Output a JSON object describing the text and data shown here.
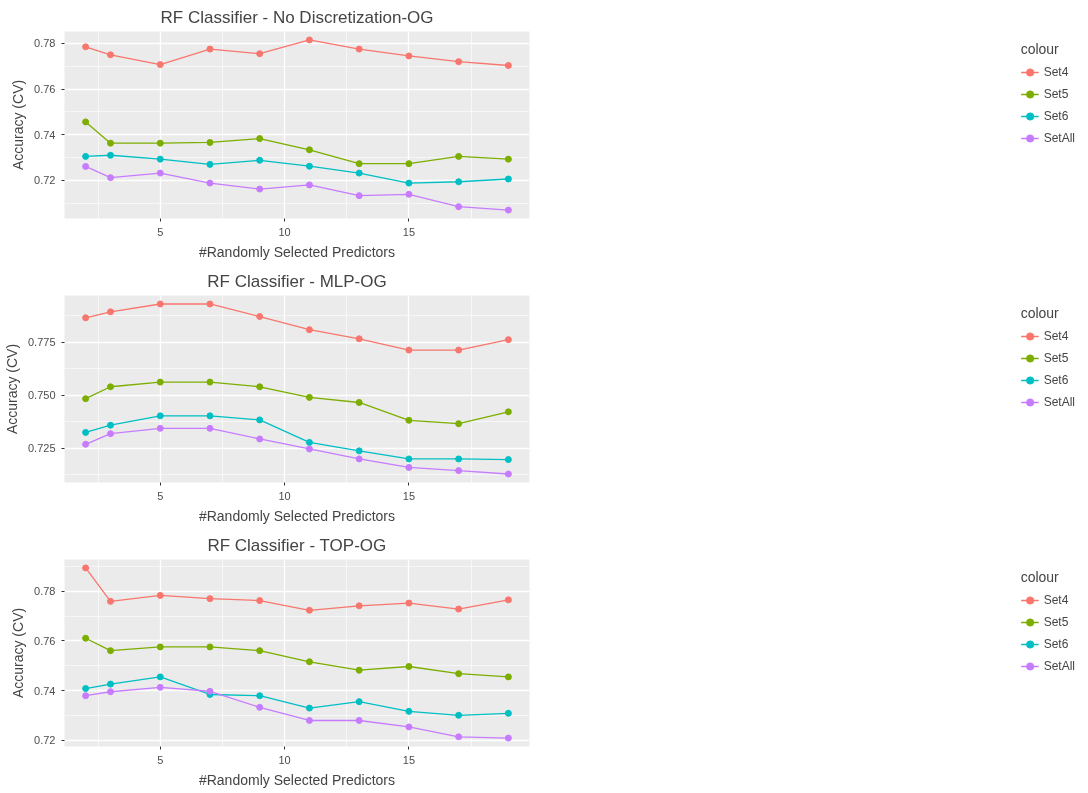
{
  "chart_data": [
    {
      "type": "line",
      "title": "RF Classifier - No Discretization-OG",
      "xlabel": "#Randomly Selected Predictors",
      "ylabel": "Accuracy (CV)",
      "legend_title": "colour",
      "legend": "right",
      "grid": true,
      "marker": "circle",
      "line_style": "solid",
      "x": [
        2,
        3,
        5,
        7,
        9,
        11,
        13,
        15,
        17,
        19
      ],
      "xlim": [
        1.15,
        19.85
      ],
      "xticks": [
        5,
        10,
        15
      ],
      "ylim": [
        0.7033,
        0.7852
      ],
      "yticks": [
        0.72,
        0.74,
        0.76,
        0.78
      ],
      "series": [
        {
          "name": "Set4",
          "color": "#f8766d",
          "values": [
            0.7785,
            0.775,
            0.7707,
            0.7775,
            0.7755,
            0.7815,
            0.7775,
            0.7745,
            0.772,
            0.7703
          ]
        },
        {
          "name": "Set5",
          "color": "#7cae00",
          "values": [
            0.7456,
            0.7363,
            0.7363,
            0.7366,
            0.7383,
            0.7334,
            0.7273,
            0.7273,
            0.7305,
            0.7293
          ]
        },
        {
          "name": "Set6",
          "color": "#00bfc4",
          "values": [
            0.7305,
            0.731,
            0.7293,
            0.727,
            0.7288,
            0.7262,
            0.7232,
            0.7188,
            0.7194,
            0.7206
          ]
        },
        {
          "name": "SetAll",
          "color": "#c77cff",
          "values": [
            0.7261,
            0.7212,
            0.7232,
            0.7188,
            0.7162,
            0.718,
            0.7133,
            0.7139,
            0.7085,
            0.707
          ]
        }
      ]
    },
    {
      "type": "line",
      "title": "RF Classifier - MLP-OG",
      "xlabel": "#Randomly Selected Predictors",
      "ylabel": "Accuracy (CV)",
      "legend_title": "colour",
      "legend": "right",
      "grid": true,
      "marker": "circle",
      "line_style": "solid",
      "x": [
        2,
        3,
        5,
        7,
        9,
        11,
        13,
        15,
        17,
        19
      ],
      "xlim": [
        1.15,
        19.85
      ],
      "xticks": [
        5,
        10,
        15
      ],
      "ylim": [
        0.7089,
        0.797
      ],
      "yticks": [
        {
          "value": 0.725,
          "label": "0.725"
        },
        {
          "value": 0.75,
          "label": "0.750"
        },
        {
          "value": 0.775,
          "label": "0.775"
        }
      ],
      "series": [
        {
          "name": "Set4",
          "color": "#f8766d",
          "values": [
            0.7865,
            0.7893,
            0.793,
            0.793,
            0.7871,
            0.7809,
            0.7766,
            0.7713,
            0.7713,
            0.7762
          ]
        },
        {
          "name": "Set5",
          "color": "#7cae00",
          "values": [
            0.7484,
            0.754,
            0.7562,
            0.7562,
            0.754,
            0.749,
            0.7466,
            0.7382,
            0.7366,
            0.7422
          ]
        },
        {
          "name": "Set6",
          "color": "#00bfc4",
          "values": [
            0.7325,
            0.7359,
            0.7403,
            0.7403,
            0.7384,
            0.7278,
            0.7238,
            0.72,
            0.72,
            0.7197
          ]
        },
        {
          "name": "SetAll",
          "color": "#c77cff",
          "values": [
            0.7269,
            0.7319,
            0.7344,
            0.7344,
            0.7294,
            0.7247,
            0.72,
            0.716,
            0.7145,
            0.7129
          ]
        }
      ]
    },
    {
      "type": "line",
      "title": "RF Classifier - TOP-OG",
      "xlabel": "#Randomly Selected Predictors",
      "ylabel": "Accuracy (CV)",
      "legend_title": "colour",
      "legend": "right",
      "grid": true,
      "marker": "circle",
      "line_style": "solid",
      "x": [
        2,
        3,
        5,
        7,
        9,
        11,
        13,
        15,
        17,
        19
      ],
      "xlim": [
        1.15,
        19.85
      ],
      "xticks": [
        5,
        10,
        15
      ],
      "ylim": [
        0.7174,
        0.7929
      ],
      "yticks": [
        0.72,
        0.74,
        0.76,
        0.78
      ],
      "series": [
        {
          "name": "Set4",
          "color": "#f8766d",
          "values": [
            0.7895,
            0.776,
            0.7784,
            0.7771,
            0.7763,
            0.7724,
            0.7742,
            0.7753,
            0.7729,
            0.7766
          ]
        },
        {
          "name": "Set5",
          "color": "#7cae00",
          "values": [
            0.7611,
            0.7561,
            0.7576,
            0.7576,
            0.7561,
            0.7516,
            0.7482,
            0.7497,
            0.7468,
            0.7455
          ]
        },
        {
          "name": "Set6",
          "color": "#00bfc4",
          "values": [
            0.7408,
            0.7426,
            0.7455,
            0.7384,
            0.7379,
            0.7329,
            0.7355,
            0.7316,
            0.73,
            0.7308
          ]
        },
        {
          "name": "SetAll",
          "color": "#c77cff",
          "values": [
            0.7379,
            0.7395,
            0.7413,
            0.7397,
            0.7332,
            0.7279,
            0.7279,
            0.7253,
            0.7213,
            0.7208
          ]
        }
      ]
    }
  ]
}
